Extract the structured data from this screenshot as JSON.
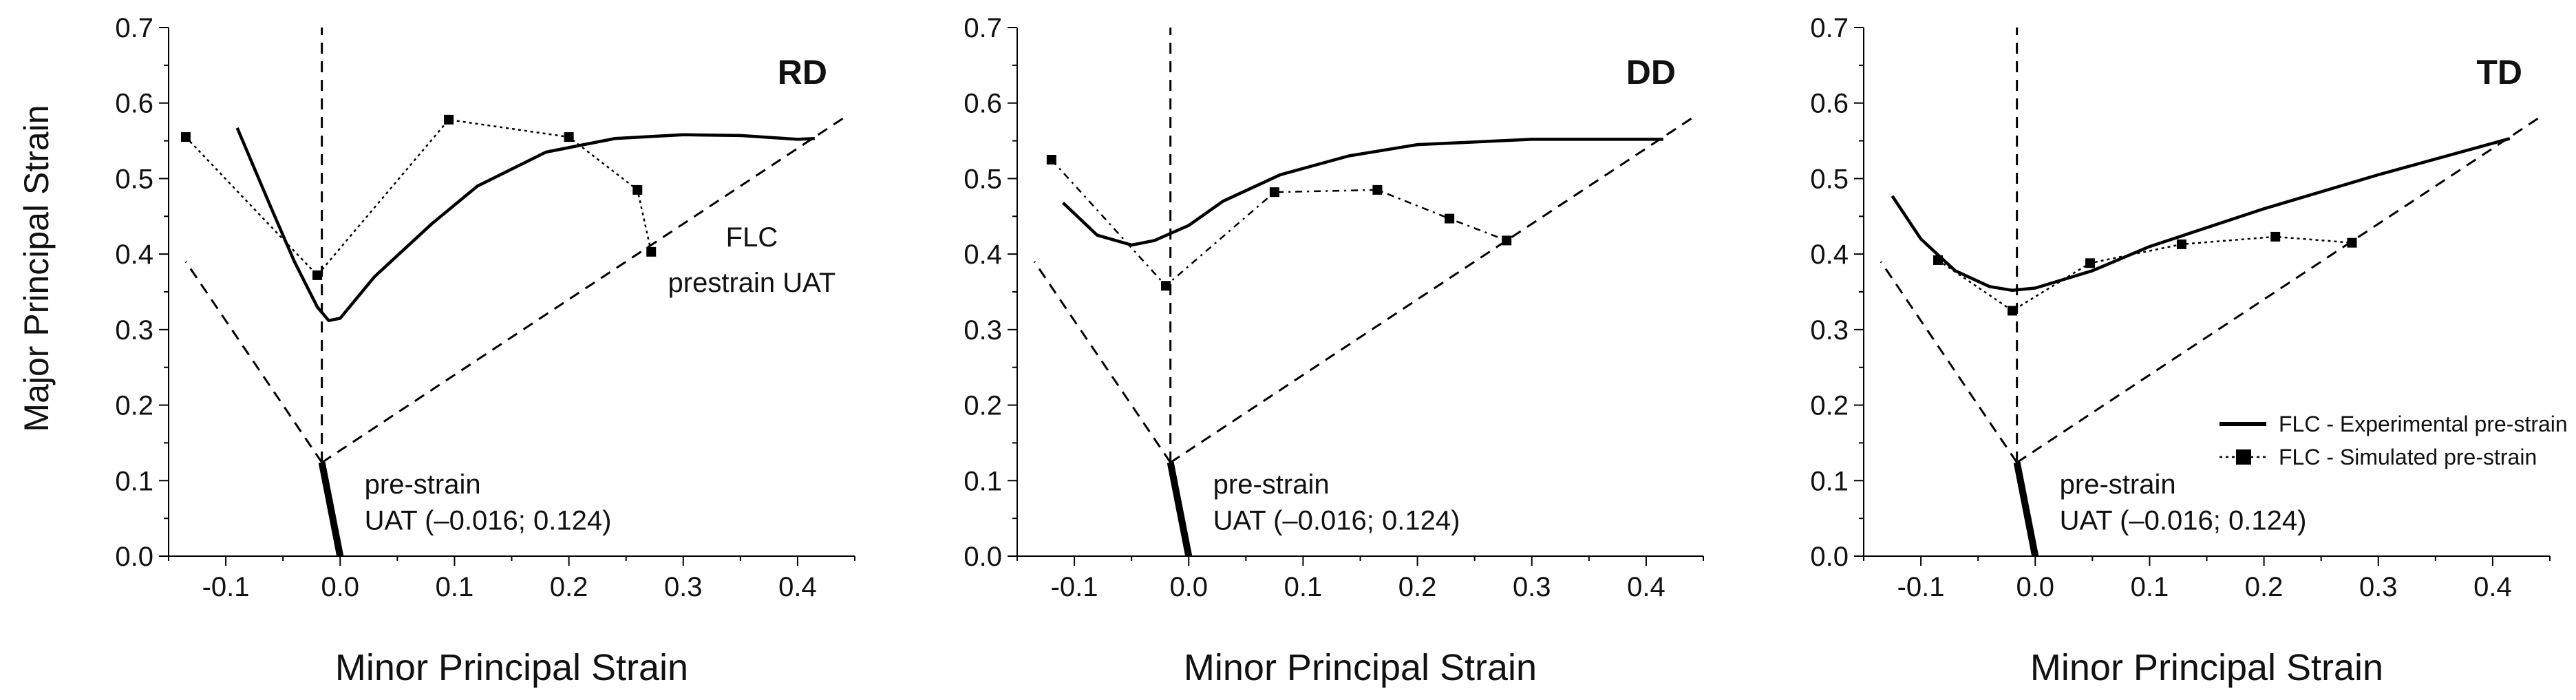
{
  "figure": {
    "ylabel": "Major Principal Strain",
    "colors": {
      "line": "#000000",
      "background": "#ffffff"
    }
  },
  "chart_data": [
    {
      "type": "line",
      "panel": "RD",
      "title": "RD",
      "xlabel": "Minor Principal Strain",
      "ylabel": "Major Principal Strain",
      "xlim": [
        -0.15,
        0.45
      ],
      "ylim": [
        0,
        0.7
      ],
      "xticks": [
        "-0.1",
        "0.0",
        "0.1",
        "0.2",
        "0.3",
        "0.4"
      ],
      "yticks": [
        "0.0",
        "0.1",
        "0.2",
        "0.3",
        "0.4",
        "0.5",
        "0.6",
        "0.7"
      ],
      "prestrain_point": [
        -0.016,
        0.124
      ],
      "annotations": [
        "pre-strain",
        "UAT (–0.016; 0.124)",
        "FLC",
        "prestrain UAT"
      ],
      "series": [
        {
          "name": "FLC - Experimental pre-strain",
          "style": "solid",
          "x": [
            -0.09,
            -0.06,
            -0.04,
            -0.02,
            -0.01,
            0.0,
            0.03,
            0.08,
            0.12,
            0.18,
            0.24,
            0.3,
            0.35,
            0.4,
            0.415
          ],
          "y": [
            0.567,
            0.46,
            0.39,
            0.33,
            0.312,
            0.315,
            0.37,
            0.44,
            0.49,
            0.535,
            0.553,
            0.558,
            0.557,
            0.552,
            0.553
          ]
        },
        {
          "name": "FLC - Simulated pre-strain",
          "style": "dotted-square",
          "x": [
            -0.135,
            -0.02,
            0.095,
            0.2,
            0.26,
            0.272
          ],
          "y": [
            0.555,
            0.372,
            0.578,
            0.555,
            0.485,
            0.403
          ]
        }
      ],
      "pre_strain_path": {
        "x": [
          -0.016,
          0.0
        ],
        "y": [
          0.124,
          0.0
        ]
      },
      "limit_lines": [
        {
          "x": [
            -0.016,
            -0.016
          ],
          "y": [
            0.124,
            0.7
          ]
        },
        {
          "x": [
            -0.016,
            -0.135
          ],
          "y": [
            0.124,
            0.39
          ]
        },
        {
          "x": [
            -0.016,
            0.44
          ],
          "y": [
            0.124,
            0.58
          ]
        }
      ]
    },
    {
      "type": "line",
      "panel": "DD",
      "title": "DD",
      "xlabel": "Minor Principal Strain",
      "ylabel": "",
      "xlim": [
        -0.15,
        0.45
      ],
      "ylim": [
        0,
        0.7
      ],
      "xticks": [
        "-0.1",
        "0.0",
        "0.1",
        "0.2",
        "0.3",
        "0.4"
      ],
      "yticks": [
        "0.0",
        "0.1",
        "0.2",
        "0.3",
        "0.4",
        "0.5",
        "0.6",
        "0.7"
      ],
      "prestrain_point": [
        -0.016,
        0.124
      ],
      "annotations": [
        "pre-strain",
        "UAT (–0.016; 0.124)"
      ],
      "series": [
        {
          "name": "FLC - Experimental pre-strain",
          "style": "solid",
          "x": [
            -0.11,
            -0.08,
            -0.05,
            -0.03,
            0.0,
            0.03,
            0.08,
            0.14,
            0.2,
            0.3,
            0.4,
            0.415
          ],
          "y": [
            0.468,
            0.425,
            0.412,
            0.418,
            0.438,
            0.47,
            0.505,
            0.53,
            0.545,
            0.552,
            0.552,
            0.552
          ]
        },
        {
          "name": "FLC - Simulated pre-strain",
          "style": "dash-dot-square",
          "x": [
            -0.12,
            -0.02,
            0.075,
            0.165,
            0.228,
            0.278
          ],
          "y": [
            0.525,
            0.358,
            0.482,
            0.485,
            0.447,
            0.418
          ]
        }
      ],
      "pre_strain_path": {
        "x": [
          -0.016,
          0.0
        ],
        "y": [
          0.124,
          0.0
        ]
      },
      "limit_lines": [
        {
          "x": [
            -0.016,
            -0.016
          ],
          "y": [
            0.124,
            0.7
          ]
        },
        {
          "x": [
            -0.016,
            -0.135
          ],
          "y": [
            0.124,
            0.39
          ]
        },
        {
          "x": [
            -0.016,
            0.44
          ],
          "y": [
            0.124,
            0.58
          ]
        }
      ]
    },
    {
      "type": "line",
      "panel": "TD",
      "title": "TD",
      "xlabel": "Minor Principal Strain",
      "ylabel": "",
      "xlim": [
        -0.15,
        0.45
      ],
      "ylim": [
        0,
        0.7
      ],
      "xticks": [
        "-0.1",
        "0.0",
        "0.1",
        "0.2",
        "0.3",
        "0.4"
      ],
      "yticks": [
        "0.0",
        "0.1",
        "0.2",
        "0.3",
        "0.4",
        "0.5",
        "0.6",
        "0.7"
      ],
      "prestrain_point": [
        -0.016,
        0.124
      ],
      "annotations": [
        "pre-strain",
        "UAT (–0.016; 0.124)"
      ],
      "legend": {
        "position": "bottom-right",
        "entries": [
          "FLC - Experimental pre-strain",
          "FLC - Simulated pre-strain"
        ]
      },
      "series": [
        {
          "name": "FLC - Experimental pre-strain",
          "style": "solid",
          "x": [
            -0.125,
            -0.1,
            -0.07,
            -0.04,
            -0.02,
            0.0,
            0.05,
            0.1,
            0.2,
            0.3,
            0.415
          ],
          "y": [
            0.477,
            0.42,
            0.378,
            0.357,
            0.352,
            0.355,
            0.378,
            0.41,
            0.46,
            0.505,
            0.553
          ]
        },
        {
          "name": "FLC - Simulated pre-strain",
          "style": "dotted-square",
          "x": [
            -0.085,
            -0.02,
            0.048,
            0.128,
            0.21,
            0.277
          ],
          "y": [
            0.392,
            0.325,
            0.388,
            0.413,
            0.423,
            0.415
          ]
        }
      ],
      "pre_strain_path": {
        "x": [
          -0.016,
          0.0
        ],
        "y": [
          0.124,
          0.0
        ]
      },
      "limit_lines": [
        {
          "x": [
            -0.016,
            -0.016
          ],
          "y": [
            0.124,
            0.7
          ]
        },
        {
          "x": [
            -0.016,
            -0.135
          ],
          "y": [
            0.124,
            0.39
          ]
        },
        {
          "x": [
            -0.016,
            0.44
          ],
          "y": [
            0.124,
            0.58
          ]
        }
      ]
    }
  ]
}
